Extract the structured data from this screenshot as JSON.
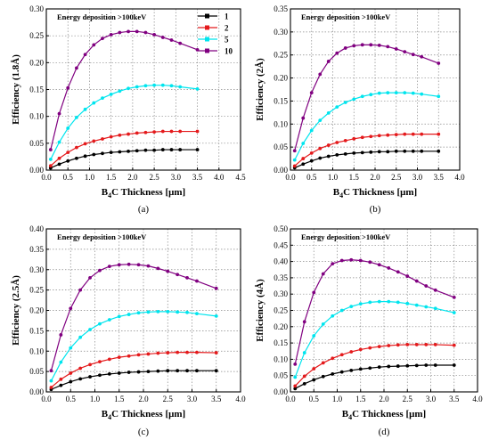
{
  "legend": {
    "entries": [
      {
        "label": "1",
        "color": "#000000"
      },
      {
        "label": "2",
        "color": "#e41a1c"
      },
      {
        "label": "5",
        "color": "#00e5ee"
      },
      {
        "label": "10",
        "color": "#800080"
      }
    ]
  },
  "chart_data": [
    {
      "panel": "(a)",
      "type": "line",
      "annotation": "Energy deposition >100keV",
      "xlabel": "B4C Thickness [μm]",
      "ylabel": "Efficiency (1.8Å)",
      "xlim": [
        0,
        4.5
      ],
      "ylim": [
        0,
        0.3
      ],
      "xticks": [
        "0.0",
        "0.5",
        "1.0",
        "1.5",
        "2.0",
        "2.5",
        "3.0",
        "3.5",
        "4.0",
        "4.5"
      ],
      "yticks": [
        "0.00",
        "0.05",
        "0.10",
        "0.15",
        "0.20",
        "0.25",
        "0.30"
      ],
      "grid": true,
      "legend_position": "top-right",
      "x": [
        0.1,
        0.3,
        0.5,
        0.7,
        0.9,
        1.1,
        1.3,
        1.5,
        1.7,
        1.9,
        2.1,
        2.3,
        2.5,
        2.7,
        2.9,
        3.1,
        3.5
      ],
      "series": [
        {
          "name": "1",
          "values": [
            0.004,
            0.011,
            0.017,
            0.022,
            0.026,
            0.029,
            0.031,
            0.033,
            0.034,
            0.035,
            0.036,
            0.037,
            0.037,
            0.038,
            0.038,
            0.038,
            0.038
          ]
        },
        {
          "name": "2",
          "values": [
            0.008,
            0.022,
            0.033,
            0.042,
            0.049,
            0.054,
            0.058,
            0.062,
            0.065,
            0.067,
            0.069,
            0.07,
            0.071,
            0.072,
            0.072,
            0.072,
            0.072
          ]
        },
        {
          "name": "5",
          "values": [
            0.02,
            0.052,
            0.078,
            0.098,
            0.113,
            0.125,
            0.134,
            0.141,
            0.147,
            0.152,
            0.155,
            0.157,
            0.158,
            0.158,
            0.157,
            0.155,
            0.151
          ]
        },
        {
          "name": "10",
          "values": [
            0.038,
            0.105,
            0.153,
            0.19,
            0.215,
            0.233,
            0.245,
            0.252,
            0.256,
            0.258,
            0.258,
            0.256,
            0.252,
            0.247,
            0.242,
            0.236,
            0.224
          ]
        }
      ]
    },
    {
      "panel": "(b)",
      "type": "line",
      "annotation": "Energy deposition >100keV",
      "xlabel": "B4C Thickness [μm]",
      "ylabel": "Efficiency (2Å)",
      "xlim": [
        0,
        4.0
      ],
      "ylim": [
        0,
        0.35
      ],
      "xticks": [
        "0.0",
        "0.5",
        "1.0",
        "1.5",
        "2.0",
        "2.5",
        "3.0",
        "3.5",
        "4.0"
      ],
      "yticks": [
        "0.00",
        "0.05",
        "0.10",
        "0.15",
        "0.20",
        "0.25",
        "0.30",
        "0.35"
      ],
      "grid": true,
      "x": [
        0.1,
        0.3,
        0.5,
        0.7,
        0.9,
        1.1,
        1.3,
        1.5,
        1.7,
        1.9,
        2.1,
        2.3,
        2.5,
        2.7,
        2.9,
        3.1,
        3.5
      ],
      "series": [
        {
          "name": "1",
          "values": [
            0.005,
            0.013,
            0.02,
            0.026,
            0.03,
            0.033,
            0.035,
            0.037,
            0.038,
            0.039,
            0.04,
            0.04,
            0.041,
            0.041,
            0.041,
            0.041,
            0.041
          ]
        },
        {
          "name": "2",
          "values": [
            0.009,
            0.025,
            0.037,
            0.047,
            0.054,
            0.06,
            0.064,
            0.068,
            0.071,
            0.073,
            0.075,
            0.076,
            0.077,
            0.078,
            0.078,
            0.078,
            0.078
          ]
        },
        {
          "name": "5",
          "values": [
            0.022,
            0.058,
            0.086,
            0.108,
            0.124,
            0.137,
            0.147,
            0.154,
            0.16,
            0.164,
            0.167,
            0.168,
            0.168,
            0.168,
            0.167,
            0.165,
            0.16
          ]
        },
        {
          "name": "10",
          "values": [
            0.042,
            0.113,
            0.168,
            0.208,
            0.236,
            0.254,
            0.265,
            0.27,
            0.272,
            0.272,
            0.271,
            0.268,
            0.263,
            0.257,
            0.251,
            0.246,
            0.232
          ]
        }
      ]
    },
    {
      "panel": "(c)",
      "type": "line",
      "annotation": "Energy deposition >100keV",
      "xlabel": "B4C Thickness [μm]",
      "ylabel": "Efficiency (2.5Å)",
      "xlim": [
        0,
        4.0
      ],
      "ylim": [
        0,
        0.4
      ],
      "xticks": [
        "0.0",
        "0.5",
        "1.0",
        "1.5",
        "2.0",
        "2.5",
        "3.0",
        "3.5",
        "4.0"
      ],
      "yticks": [
        "0.00",
        "0.05",
        "0.10",
        "0.15",
        "0.20",
        "0.25",
        "0.30",
        "0.35",
        "0.40"
      ],
      "grid": true,
      "x": [
        0.1,
        0.3,
        0.5,
        0.7,
        0.9,
        1.1,
        1.3,
        1.5,
        1.7,
        1.9,
        2.1,
        2.3,
        2.5,
        2.7,
        2.9,
        3.1,
        3.5
      ],
      "series": [
        {
          "name": "1",
          "values": [
            0.006,
            0.016,
            0.025,
            0.032,
            0.037,
            0.041,
            0.044,
            0.046,
            0.048,
            0.049,
            0.05,
            0.051,
            0.052,
            0.052,
            0.052,
            0.052,
            0.052
          ]
        },
        {
          "name": "2",
          "values": [
            0.011,
            0.031,
            0.046,
            0.058,
            0.067,
            0.074,
            0.08,
            0.085,
            0.088,
            0.091,
            0.093,
            0.095,
            0.096,
            0.097,
            0.097,
            0.097,
            0.096
          ]
        },
        {
          "name": "5",
          "values": [
            0.027,
            0.073,
            0.108,
            0.134,
            0.153,
            0.167,
            0.177,
            0.185,
            0.19,
            0.194,
            0.196,
            0.197,
            0.197,
            0.196,
            0.195,
            0.192,
            0.186
          ]
        },
        {
          "name": "10",
          "values": [
            0.052,
            0.14,
            0.205,
            0.25,
            0.28,
            0.298,
            0.308,
            0.312,
            0.313,
            0.312,
            0.309,
            0.303,
            0.296,
            0.288,
            0.28,
            0.272,
            0.254
          ]
        }
      ]
    },
    {
      "panel": "(d)",
      "type": "line",
      "annotation": "Energy deposition >100keV",
      "xlabel": "B4C Thickness [μm]",
      "ylabel": "Efficiency (4Å)",
      "xlim": [
        0,
        4.0
      ],
      "ylim": [
        0,
        0.5
      ],
      "xticks": [
        "0.0",
        "0.5",
        "1.0",
        "1.5",
        "2.0",
        "2.5",
        "3.0",
        "3.5",
        "4.0"
      ],
      "yticks": [
        "0.00",
        "0.05",
        "0.10",
        "0.15",
        "0.20",
        "0.25",
        "0.30",
        "0.35",
        "0.40",
        "0.45",
        "0.50"
      ],
      "grid": true,
      "x": [
        0.1,
        0.3,
        0.5,
        0.7,
        0.9,
        1.1,
        1.3,
        1.5,
        1.7,
        1.9,
        2.1,
        2.3,
        2.5,
        2.7,
        2.9,
        3.1,
        3.5
      ],
      "series": [
        {
          "name": "1",
          "values": [
            0.01,
            0.025,
            0.037,
            0.047,
            0.055,
            0.061,
            0.066,
            0.07,
            0.073,
            0.076,
            0.078,
            0.079,
            0.08,
            0.081,
            0.082,
            0.082,
            0.082
          ]
        },
        {
          "name": "2",
          "values": [
            0.018,
            0.048,
            0.071,
            0.089,
            0.103,
            0.114,
            0.123,
            0.13,
            0.135,
            0.139,
            0.142,
            0.144,
            0.145,
            0.145,
            0.145,
            0.145,
            0.143
          ]
        },
        {
          "name": "5",
          "values": [
            0.045,
            0.12,
            0.172,
            0.208,
            0.233,
            0.25,
            0.262,
            0.27,
            0.275,
            0.277,
            0.277,
            0.275,
            0.271,
            0.266,
            0.261,
            0.256,
            0.243
          ]
        },
        {
          "name": "10",
          "values": [
            0.085,
            0.215,
            0.305,
            0.362,
            0.393,
            0.403,
            0.405,
            0.403,
            0.398,
            0.39,
            0.38,
            0.368,
            0.355,
            0.34,
            0.325,
            0.312,
            0.29
          ]
        }
      ]
    }
  ]
}
